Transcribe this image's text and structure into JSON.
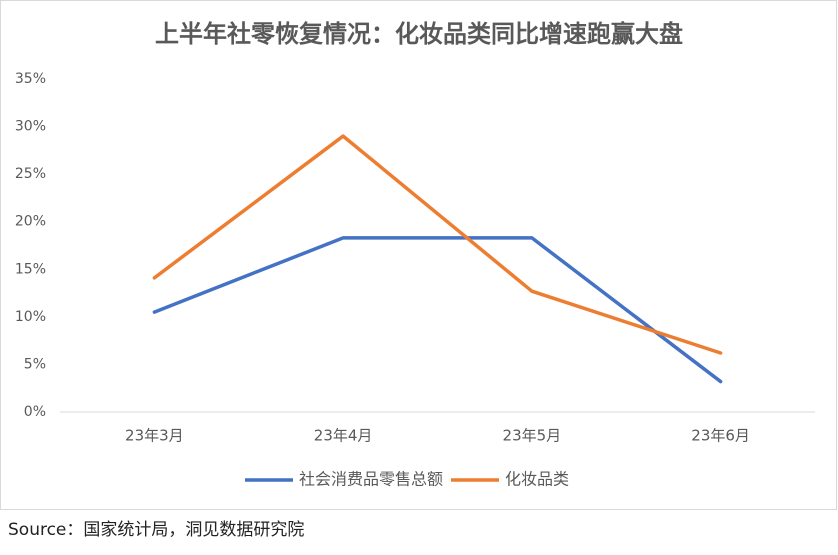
{
  "chart_data": {
    "type": "line",
    "title": "上半年社零恢复情况：化妆品类同比增速跑赢大盘",
    "categories": [
      "23年3月",
      "23年4月",
      "23年5月",
      "23年6月"
    ],
    "series": [
      {
        "name": "社会消费品零售总额",
        "color": "#4472c4",
        "values": [
          10.5,
          18.3,
          18.3,
          3.2
        ]
      },
      {
        "name": "化妆品类",
        "color": "#ed7d31",
        "values": [
          14.1,
          29.0,
          12.7,
          6.2
        ]
      }
    ],
    "ylim": [
      0,
      35
    ],
    "yticks": [
      {
        "value": 0,
        "label": "0%"
      },
      {
        "value": 5,
        "label": "5%"
      },
      {
        "value": 10,
        "label": "10%"
      },
      {
        "value": 15,
        "label": "15%"
      },
      {
        "value": 20,
        "label": "20%"
      },
      {
        "value": 25,
        "label": "25%"
      },
      {
        "value": 30,
        "label": "30%"
      },
      {
        "value": 35,
        "label": "35%"
      }
    ],
    "grid": false,
    "legend": "bottom",
    "source": "Source：国家统计局，洞见数据研究院"
  }
}
